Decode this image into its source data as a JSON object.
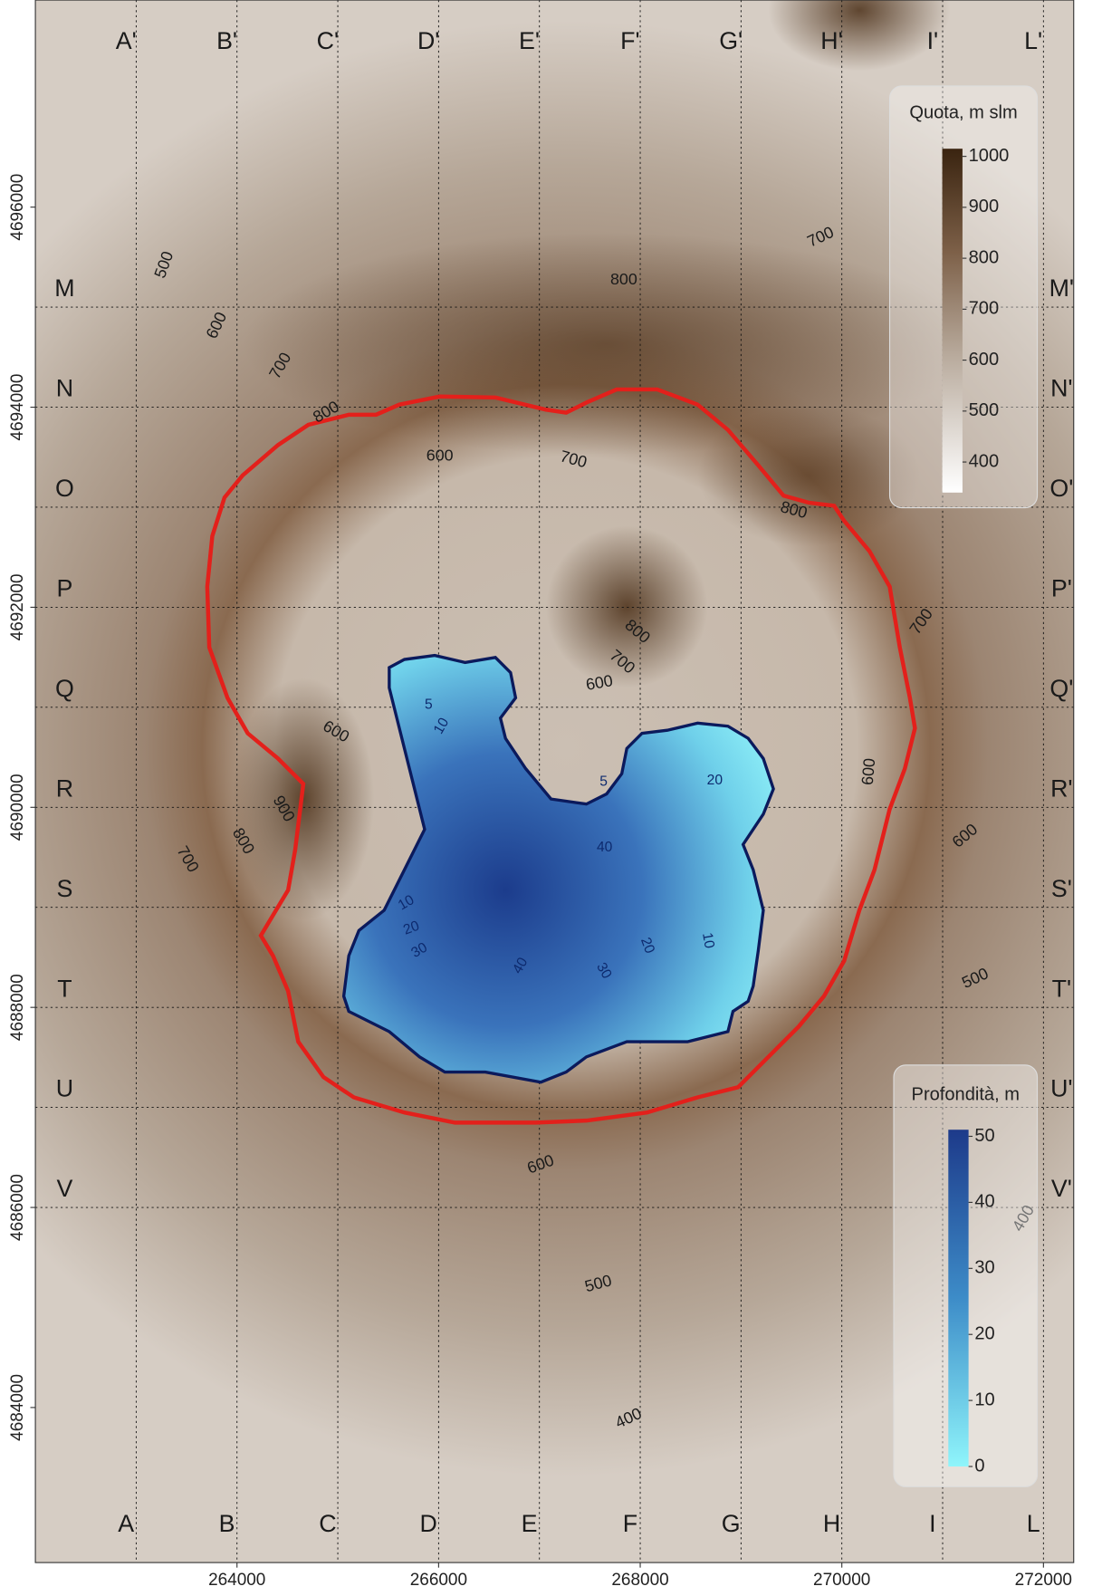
{
  "map": {
    "xlim": [
      262000,
      272300
    ],
    "ylim": [
      4682450,
      4698070
    ],
    "xticks": [
      264000,
      266000,
      268000,
      270000,
      272000
    ],
    "yticks": [
      4684000,
      4686000,
      4688000,
      4690000,
      4692000,
      4694000,
      4696000
    ],
    "grid_x": [
      263000,
      264000,
      265000,
      266000,
      267000,
      268000,
      269000,
      270000,
      271000,
      272000
    ],
    "grid_y": [
      4695000,
      4694000,
      4693000,
      4692000,
      4691000,
      4690000,
      4689000,
      4688000,
      4687000,
      4686000
    ],
    "columns_bottom": [
      "A",
      "B",
      "C",
      "D",
      "E",
      "F",
      "G",
      "H",
      "I",
      "L"
    ],
    "columns_top": [
      "A'",
      "B'",
      "C'",
      "D'",
      "E'",
      "F'",
      "G'",
      "H'",
      "I'",
      "L'"
    ],
    "rows_left": [
      "M",
      "N",
      "O",
      "P",
      "Q",
      "R",
      "S",
      "T",
      "U",
      "V"
    ],
    "rows_right": [
      "M'",
      "N'",
      "O'",
      "P'",
      "Q'",
      "R'",
      "S'",
      "T'",
      "U'",
      "V'"
    ],
    "contours": [
      500,
      600,
      700,
      800,
      800,
      700,
      600,
      700,
      800,
      800,
      700,
      600,
      700,
      600,
      900,
      800,
      700,
      600,
      600,
      500,
      600,
      500,
      400,
      400
    ],
    "depth_contours": [
      5,
      10,
      5,
      20,
      40,
      10,
      20,
      30,
      40,
      20,
      10,
      30
    ],
    "elevation_legend": {
      "title": "Quota, m slm",
      "lim": [
        340,
        1015
      ],
      "ticks": [
        1000,
        900,
        800,
        700,
        600,
        500,
        400
      ]
    },
    "depth_legend": {
      "title": "Profondità, m",
      "lim": [
        0,
        51
      ],
      "ticks": [
        50,
        40,
        30,
        20,
        10,
        0
      ]
    }
  }
}
